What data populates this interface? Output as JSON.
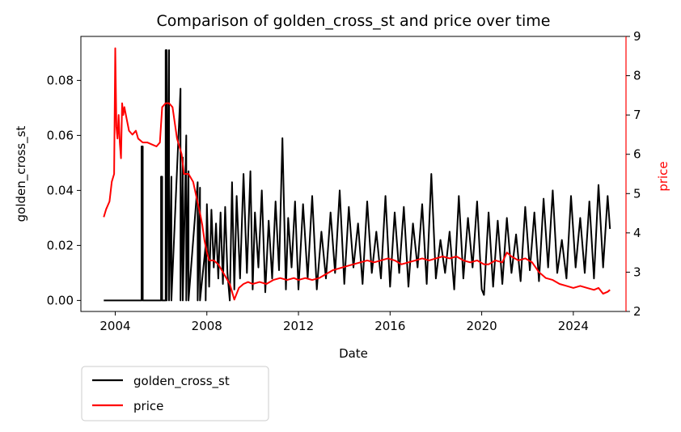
{
  "chart_data": {
    "type": "line",
    "title": "Comparison of golden_cross_st and price over time",
    "xlabel": "Date",
    "x_ticks": [
      "2004",
      "2008",
      "2012",
      "2016",
      "2020",
      "2024"
    ],
    "x_range": [
      2002.5,
      2026.3
    ],
    "y_left": {
      "label": "golden_cross_st",
      "range": [
        -0.004,
        0.096
      ],
      "ticks": [
        "0.00",
        "0.02",
        "0.04",
        "0.06",
        "0.08"
      ],
      "tick_values": [
        0.0,
        0.02,
        0.04,
        0.06,
        0.08
      ]
    },
    "y_right": {
      "label": "price",
      "color": "#ff0000",
      "range": [
        2.0,
        9.0
      ],
      "ticks": [
        "2",
        "3",
        "4",
        "5",
        "6",
        "7",
        "8",
        "9"
      ],
      "tick_values": [
        2,
        3,
        4,
        5,
        6,
        7,
        8,
        9
      ]
    },
    "legend": {
      "placement": "below-left"
    },
    "series": [
      {
        "name": "golden_cross_st",
        "axis": "left",
        "color": "#000000",
        "x": [
          2003.5,
          2005.15,
          2005.15,
          2005.2,
          2005.2,
          2006.0,
          2006.0,
          2006.05,
          2006.05,
          2006.2,
          2006.2,
          2006.25,
          2006.25,
          2006.35,
          2006.35,
          2006.45,
          2006.45,
          2006.85,
          2006.85,
          2006.95,
          2006.95,
          2007.1,
          2007.1,
          2007.2,
          2007.2,
          2007.6,
          2007.6,
          2007.7,
          2007.7,
          2007.95,
          2007.95,
          2008.0,
          2008.1,
          2008.2,
          2008.3,
          2008.4,
          2008.5,
          2008.6,
          2008.7,
          2008.8,
          2008.9,
          2009.0,
          2009.1,
          2009.2,
          2009.3,
          2009.45,
          2009.6,
          2009.75,
          2009.9,
          2010.0,
          2010.1,
          2010.25,
          2010.4,
          2010.55,
          2010.7,
          2010.85,
          2011.0,
          2011.15,
          2011.3,
          2011.45,
          2011.55,
          2011.7,
          2011.85,
          2012.0,
          2012.2,
          2012.4,
          2012.6,
          2012.8,
          2013.0,
          2013.2,
          2013.4,
          2013.6,
          2013.8,
          2014.0,
          2014.2,
          2014.4,
          2014.6,
          2014.8,
          2015.0,
          2015.2,
          2015.4,
          2015.6,
          2015.8,
          2016.0,
          2016.2,
          2016.4,
          2016.6,
          2016.8,
          2017.0,
          2017.2,
          2017.4,
          2017.6,
          2017.8,
          2018.0,
          2018.2,
          2018.4,
          2018.6,
          2018.8,
          2019.0,
          2019.2,
          2019.4,
          2019.6,
          2019.8,
          2020.0,
          2020.1,
          2020.3,
          2020.5,
          2020.7,
          2020.9,
          2021.1,
          2021.3,
          2021.5,
          2021.7,
          2021.9,
          2022.1,
          2022.3,
          2022.5,
          2022.7,
          2022.9,
          2023.1,
          2023.3,
          2023.5,
          2023.7,
          2023.9,
          2024.1,
          2024.3,
          2024.5,
          2024.7,
          2024.9,
          2025.1,
          2025.3,
          2025.5,
          2025.6
        ],
        "y": [
          0.0,
          0.0,
          0.056,
          0.056,
          0.0,
          0.0,
          0.045,
          0.045,
          0.0,
          0.0,
          0.091,
          0.091,
          0.0,
          0.091,
          0.0,
          0.045,
          0.0,
          0.077,
          0.0,
          0.052,
          0.0,
          0.06,
          0.0,
          0.047,
          0.0,
          0.043,
          0.0,
          0.041,
          0.0,
          0.02,
          0.0,
          0.035,
          0.005,
          0.033,
          0.012,
          0.028,
          0.008,
          0.032,
          0.006,
          0.034,
          0.01,
          0.0,
          0.043,
          0.004,
          0.038,
          0.008,
          0.046,
          0.01,
          0.047,
          0.004,
          0.032,
          0.012,
          0.04,
          0.003,
          0.029,
          0.008,
          0.036,
          0.011,
          0.059,
          0.004,
          0.03,
          0.012,
          0.036,
          0.004,
          0.035,
          0.008,
          0.038,
          0.004,
          0.025,
          0.008,
          0.032,
          0.01,
          0.04,
          0.006,
          0.034,
          0.012,
          0.028,
          0.006,
          0.036,
          0.01,
          0.025,
          0.008,
          0.038,
          0.005,
          0.032,
          0.01,
          0.034,
          0.005,
          0.028,
          0.012,
          0.035,
          0.006,
          0.046,
          0.008,
          0.022,
          0.01,
          0.025,
          0.004,
          0.038,
          0.008,
          0.03,
          0.012,
          0.036,
          0.004,
          0.002,
          0.032,
          0.005,
          0.029,
          0.006,
          0.03,
          0.01,
          0.024,
          0.007,
          0.034,
          0.011,
          0.032,
          0.007,
          0.037,
          0.012,
          0.04,
          0.01,
          0.022,
          0.008,
          0.038,
          0.012,
          0.03,
          0.01,
          0.036,
          0.008,
          0.042,
          0.012,
          0.038,
          0.026
        ]
      },
      {
        "name": "price",
        "axis": "right",
        "color": "#ff0000",
        "x": [
          2003.5,
          2003.6,
          2003.75,
          2003.85,
          2003.95,
          2004.0,
          2004.05,
          2004.1,
          2004.15,
          2004.2,
          2004.25,
          2004.3,
          2004.35,
          2004.4,
          2004.5,
          2004.6,
          2004.75,
          2004.9,
          2005.0,
          2005.2,
          2005.4,
          2005.6,
          2005.8,
          2005.95,
          2006.05,
          2006.2,
          2006.35,
          2006.5,
          2006.6,
          2006.7,
          2006.8,
          2006.9,
          2007.0,
          2007.2,
          2007.4,
          2007.55,
          2007.7,
          2007.8,
          2007.9,
          2008.0,
          2008.1,
          2008.3,
          2008.5,
          2008.7,
          2008.9,
          2009.0,
          2009.1,
          2009.2,
          2009.4,
          2009.6,
          2009.8,
          2010.0,
          2010.3,
          2010.6,
          2010.9,
          2011.2,
          2011.5,
          2011.8,
          2012.0,
          2012.3,
          2012.6,
          2012.9,
          2013.2,
          2013.5,
          2013.8,
          2014.1,
          2014.4,
          2014.7,
          2015.0,
          2015.3,
          2015.6,
          2015.9,
          2016.2,
          2016.5,
          2016.8,
          2017.1,
          2017.4,
          2017.7,
          2018.0,
          2018.3,
          2018.6,
          2018.9,
          2019.2,
          2019.5,
          2019.8,
          2020.1,
          2020.3,
          2020.6,
          2020.9,
          2021.1,
          2021.3,
          2021.6,
          2021.9,
          2022.2,
          2022.5,
          2022.8,
          2023.1,
          2023.4,
          2023.7,
          2024.0,
          2024.3,
          2024.6,
          2024.9,
          2025.1,
          2025.3,
          2025.5,
          2025.6
        ],
        "y": [
          4.4,
          4.6,
          4.8,
          5.3,
          5.5,
          8.7,
          6.7,
          6.4,
          7.0,
          6.3,
          5.9,
          7.3,
          7.0,
          7.2,
          6.9,
          6.6,
          6.5,
          6.6,
          6.4,
          6.3,
          6.3,
          6.25,
          6.2,
          6.3,
          7.2,
          7.3,
          7.3,
          7.2,
          6.8,
          6.4,
          6.2,
          6.0,
          5.5,
          5.5,
          5.3,
          4.9,
          4.5,
          4.2,
          3.8,
          3.5,
          3.3,
          3.3,
          3.2,
          3.0,
          2.8,
          2.7,
          2.5,
          2.3,
          2.6,
          2.7,
          2.75,
          2.7,
          2.75,
          2.7,
          2.8,
          2.85,
          2.8,
          2.85,
          2.8,
          2.85,
          2.8,
          2.85,
          2.95,
          3.05,
          3.1,
          3.15,
          3.2,
          3.25,
          3.3,
          3.25,
          3.3,
          3.35,
          3.3,
          3.2,
          3.25,
          3.3,
          3.35,
          3.3,
          3.35,
          3.4,
          3.35,
          3.4,
          3.3,
          3.25,
          3.3,
          3.2,
          3.2,
          3.3,
          3.25,
          3.5,
          3.4,
          3.3,
          3.35,
          3.25,
          3.0,
          2.85,
          2.8,
          2.7,
          2.65,
          2.6,
          2.65,
          2.6,
          2.55,
          2.6,
          2.45,
          2.5,
          2.55
        ]
      }
    ]
  }
}
